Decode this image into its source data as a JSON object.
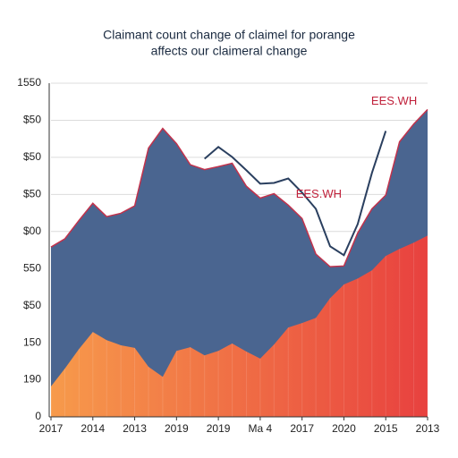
{
  "chart_data": {
    "type": "area",
    "title": [
      "Claimant count change of claimel for porange",
      "affects our claimeral change"
    ],
    "x": [
      0,
      0.33,
      0.67,
      1,
      1.33,
      1.67,
      2,
      2.33,
      2.67,
      3,
      3.33,
      3.67,
      4,
      4.33,
      4.67,
      5,
      5.33,
      5.67,
      6,
      6.33,
      6.67,
      7,
      7.33,
      7.67,
      8,
      8.33,
      8.67,
      9
    ],
    "xlim": [
      0,
      9
    ],
    "xticks": [
      {
        "value": 0,
        "label": "2017"
      },
      {
        "value": 1,
        "label": "2014"
      },
      {
        "value": 2,
        "label": "2013"
      },
      {
        "value": 3,
        "label": "2019"
      },
      {
        "value": 4,
        "label": "2019"
      },
      {
        "value": 5,
        "label": "Ma 4"
      },
      {
        "value": 6,
        "label": "2017"
      },
      {
        "value": 7,
        "label": "2020"
      },
      {
        "value": 8,
        "label": "2015"
      },
      {
        "value": 9,
        "label": "2013"
      }
    ],
    "ylim": [
      0,
      900
    ],
    "yticks": [
      0,
      {
        "value": 100,
        "label": "190"
      },
      {
        "value": 200,
        "label": "150"
      },
      {
        "value": 300,
        "label": "$50"
      },
      {
        "value": 400,
        "label": "550"
      },
      {
        "value": 500,
        "label": "$00"
      },
      {
        "value": 600,
        "label": "$50"
      },
      {
        "value": 700,
        "label": "$50"
      },
      {
        "value": 800,
        "label": "$50"
      },
      {
        "value": 900,
        "label": "1550"
      }
    ],
    "grid": true,
    "series": [
      {
        "kind": "area",
        "color": "#4a6590",
        "edge": "#c2324c",
        "values": [
          458,
          480,
          530,
          576,
          540,
          549,
          569,
          725,
          778,
          737,
          680,
          667,
          675,
          684,
          622,
          590,
          602,
          571,
          535,
          439,
          405,
          407,
          496,
          561,
          598,
          742,
          790,
          829
        ]
      },
      {
        "kind": "area",
        "color": [
          "#f79a4b",
          "#e8413f"
        ],
        "values": [
          82,
          130,
          183,
          229,
          207,
          193,
          186,
          135,
          108,
          178,
          188,
          166,
          178,
          198,
          176,
          157,
          195,
          241,
          253,
          267,
          320,
          357,
          373,
          395,
          434,
          453,
          470,
          489
        ]
      },
      {
        "kind": "line",
        "color": "#2a3f5f",
        "values": [
          null,
          null,
          null,
          null,
          null,
          null,
          null,
          null,
          null,
          null,
          null,
          696,
          728,
          701,
          665,
          629,
          631,
          643,
          605,
          561,
          460,
          436,
          520,
          658,
          771,
          null,
          null,
          null
        ]
      }
    ],
    "annotations": [
      {
        "text": "EES.WH",
        "x": 8.2,
        "y": 850,
        "color": "#c0203a"
      },
      {
        "text": "EES.WH",
        "x": 6.4,
        "y": 600,
        "color": "#c0203a"
      }
    ]
  }
}
